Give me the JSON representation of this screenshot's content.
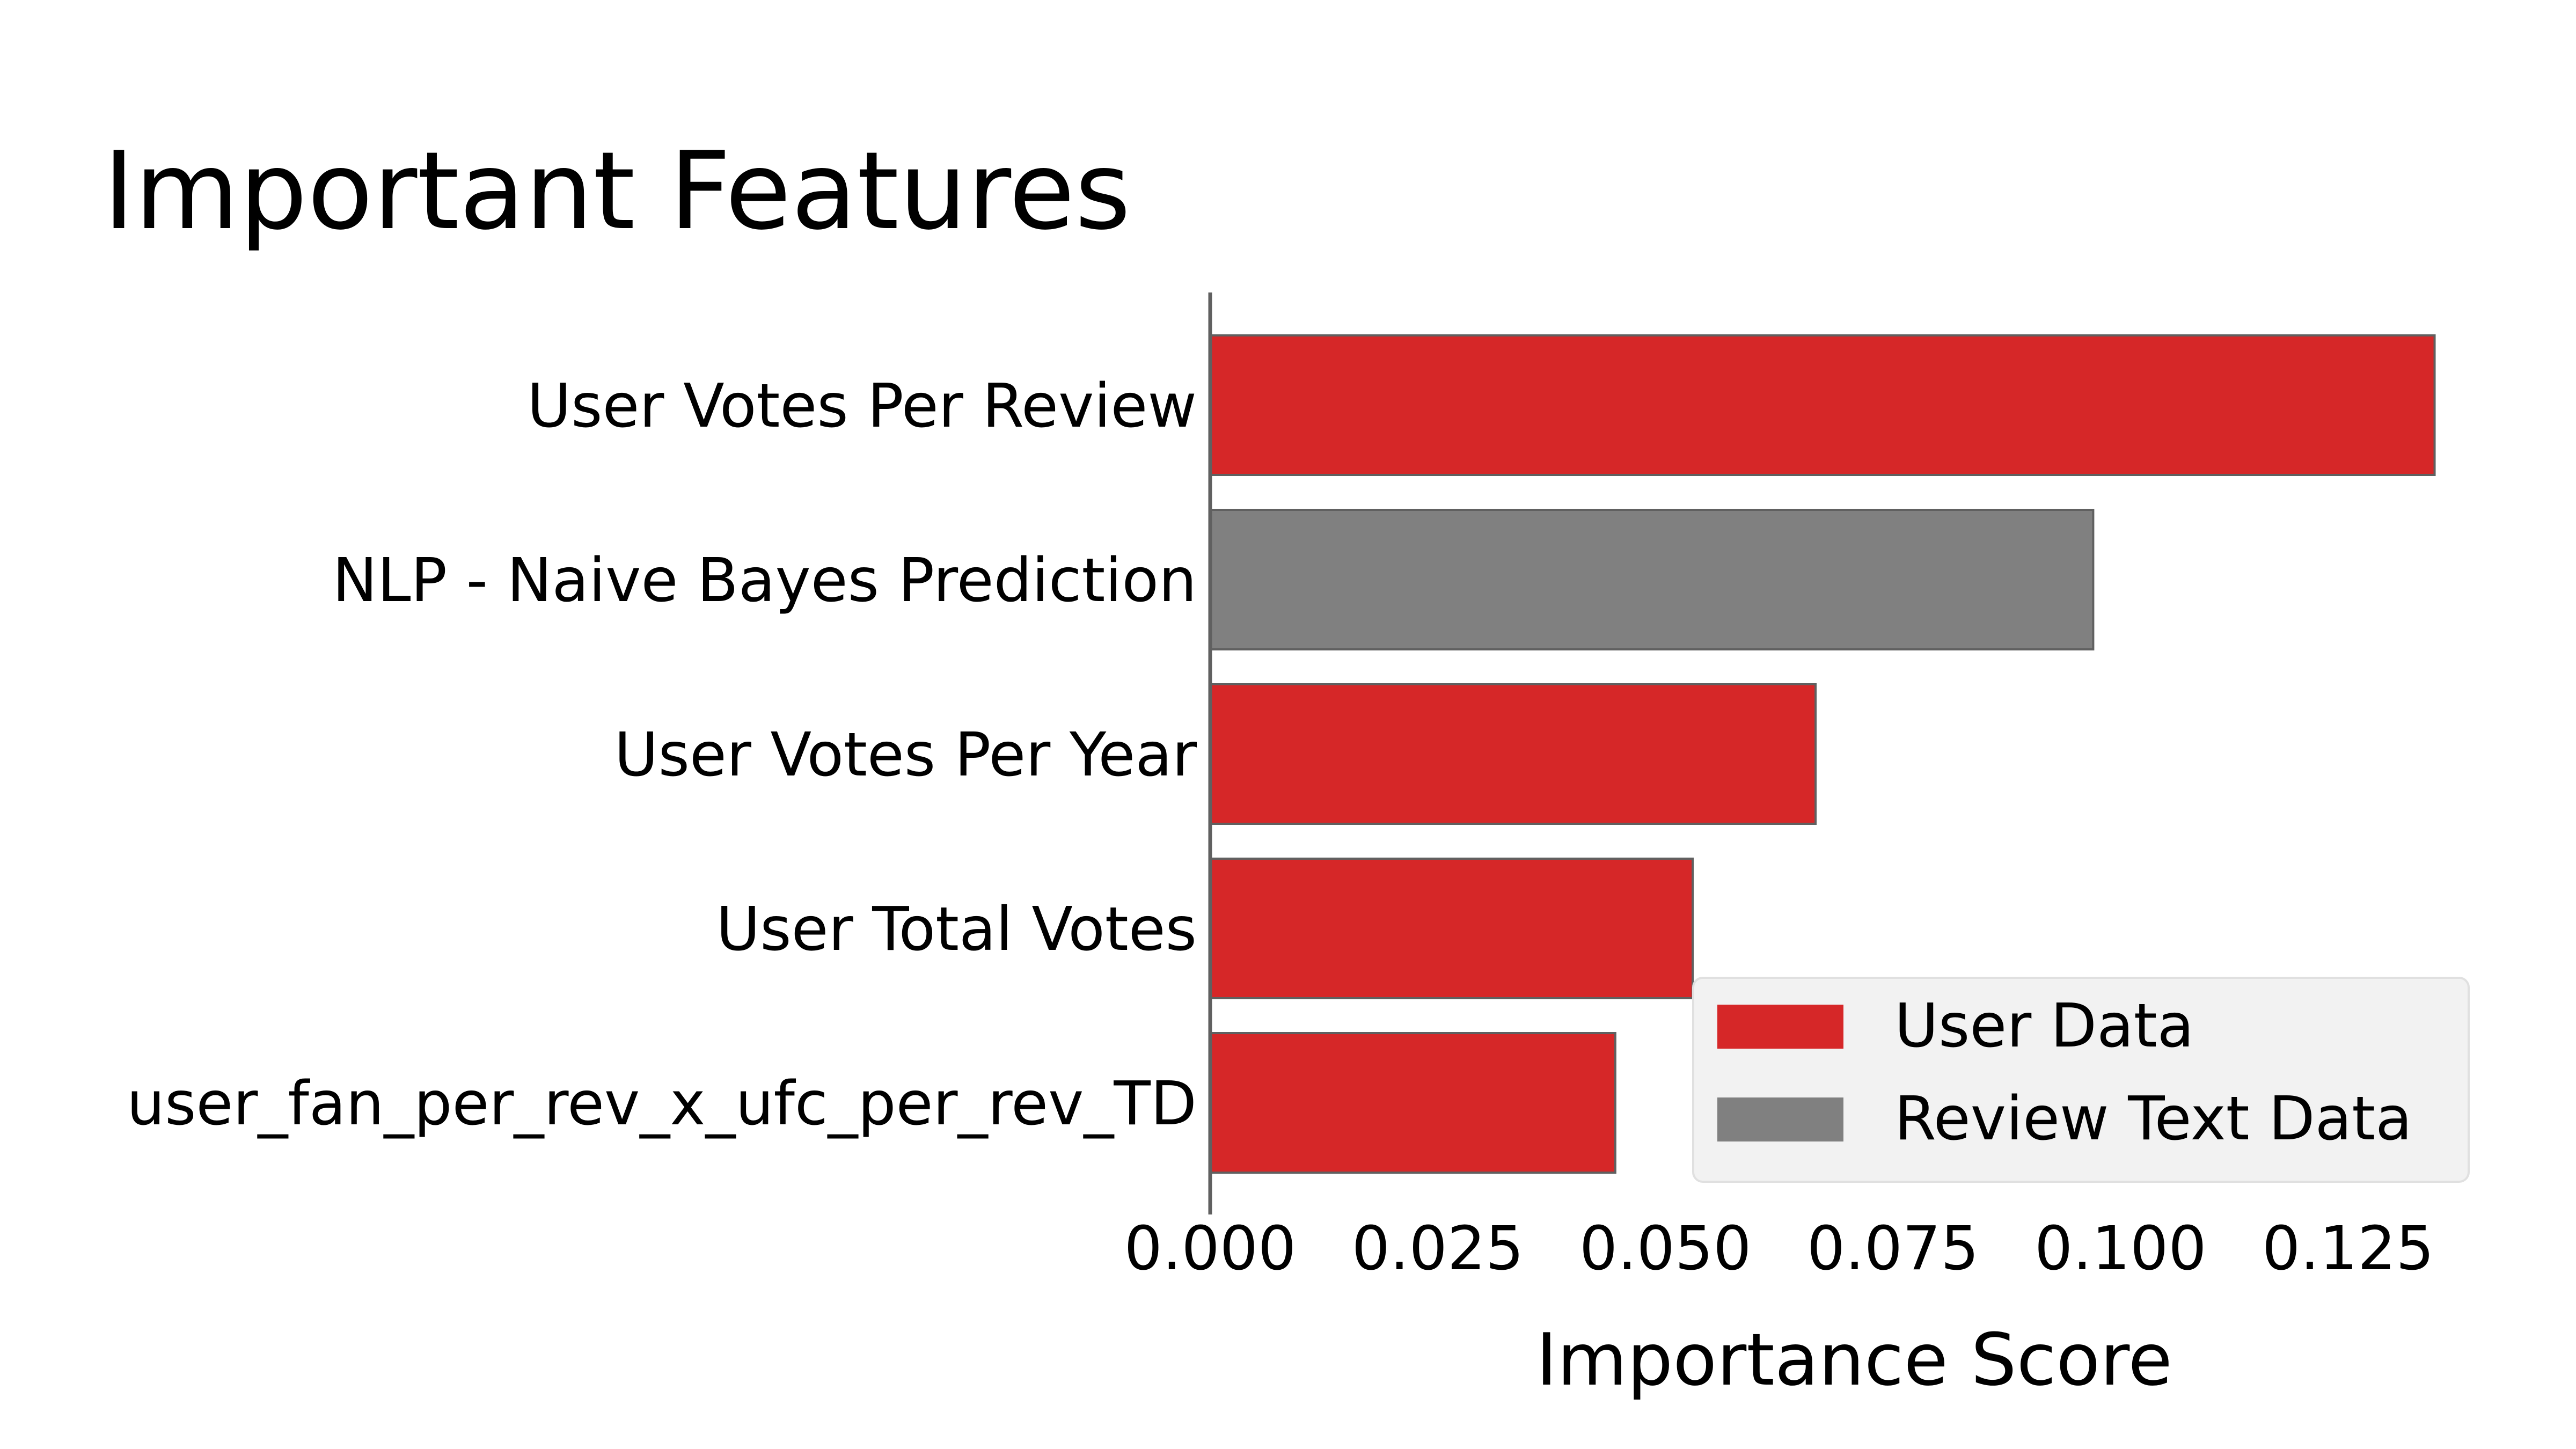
{
  "chart_data": {
    "type": "bar",
    "orientation": "horizontal",
    "title": "Important Features",
    "xlabel": "Importance Score",
    "ylabel": "",
    "categories": [
      "User Votes Per Review",
      "NLP - Naive Bayes Prediction",
      "User Votes Per Year",
      "User Total Votes",
      "user_fan_per_rev_x_ufc_per_rev_TD"
    ],
    "values": [
      0.1345,
      0.097,
      0.0665,
      0.053,
      0.0445
    ],
    "bar_groups": [
      "User Data",
      "Review Text Data",
      "User Data",
      "User Data",
      "User Data"
    ],
    "xlim": [
      0,
      0.1375
    ],
    "xticks": [
      "0.000",
      "0.025",
      "0.050",
      "0.075",
      "0.100",
      "0.125"
    ],
    "xtick_values": [
      0,
      0.025,
      0.05,
      0.075,
      0.1,
      0.125
    ],
    "grid": false,
    "legend": {
      "placement": "lower-right",
      "entries": [
        {
          "label": "User Data",
          "color": "#d62728"
        },
        {
          "label": "Review Text Data",
          "color": "#808080"
        }
      ]
    },
    "colors": {
      "User Data": "#d62728",
      "Review Text Data": "#808080",
      "bar_edge": "#606060",
      "axis": "#606060",
      "legend_bg": "#f2f2f2",
      "legend_border": "#e0e0e0"
    }
  }
}
